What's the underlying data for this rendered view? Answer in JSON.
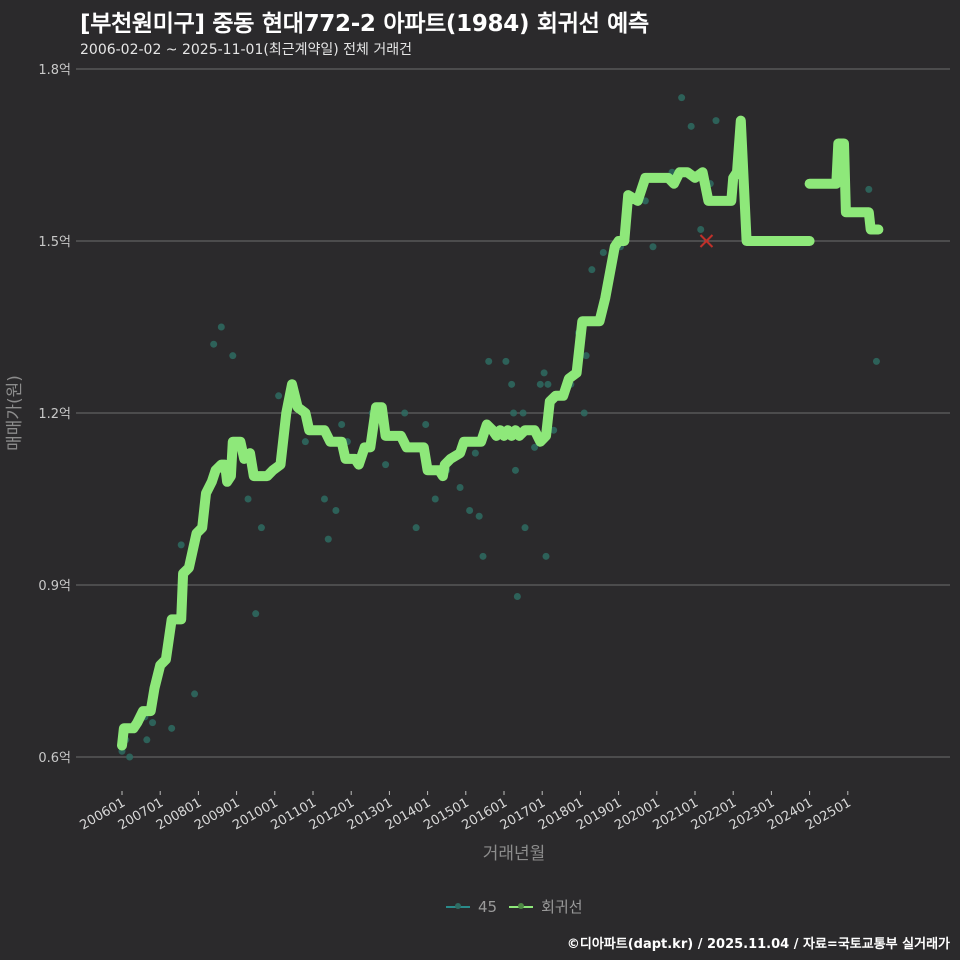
{
  "header": {
    "title": "[부천원미구] 중동 현대772-2 아파트(1984) 회귀선 예측",
    "subtitle": "2006-02-02 ~ 2025-11-01(최근계약일) 전체 거래건"
  },
  "legend": {
    "items": [
      {
        "label": "45",
        "color": "#2a8a8a"
      },
      {
        "label": "회귀선",
        "color": "#8ee87a"
      }
    ]
  },
  "footer": {
    "credit": "©디아파트(dapt.kr) / 2025.11.04 / 자료=국토교통부 실거래가"
  },
  "colors": {
    "background": "#2b2a2c",
    "regression": "#8ee87a",
    "scatter": "#2e6b62",
    "grid": "#6e6e6e",
    "marker_x": "#c0302a"
  },
  "chart_data": {
    "type": "line",
    "title": "[부천원미구] 중동 현대772-2 아파트(1984) 회귀선 예측",
    "subtitle": "2006-02-02 ~ 2025-11-01(최근계약일) 전체 거래건",
    "xlabel": "거래년월",
    "ylabel": "매매가(원)",
    "ylim": [
      0.55,
      1.82
    ],
    "yticks": [
      {
        "value": 0.6,
        "label": "0.6억"
      },
      {
        "value": 0.9,
        "label": "0.9억"
      },
      {
        "value": 1.2,
        "label": "1.2억"
      },
      {
        "value": 1.5,
        "label": "1.5억"
      },
      {
        "value": 1.8,
        "label": "1.8억"
      }
    ],
    "xticks": [
      "200601",
      "200701",
      "200801",
      "200901",
      "201001",
      "201101",
      "201201",
      "201301",
      "201401",
      "201501",
      "201601",
      "201701",
      "201801",
      "201901",
      "202001",
      "202101",
      "202201",
      "202301",
      "202401",
      "202501"
    ],
    "xrange": [
      2005.6,
      2026.0
    ],
    "grid": true,
    "legend_position": "bottom",
    "series": [
      {
        "name": "회귀선",
        "type": "line",
        "segments": [
          [
            [
              2006.0,
              0.62
            ],
            [
              2006.05,
              0.65
            ],
            [
              2006.3,
              0.65
            ],
            [
              2006.4,
              0.66
            ],
            [
              2006.55,
              0.68
            ],
            [
              2006.75,
              0.68
            ],
            [
              2006.85,
              0.72
            ],
            [
              2007.0,
              0.76
            ],
            [
              2007.15,
              0.77
            ],
            [
              2007.3,
              0.84
            ],
            [
              2007.55,
              0.84
            ],
            [
              2007.6,
              0.92
            ],
            [
              2007.75,
              0.93
            ],
            [
              2007.95,
              0.99
            ],
            [
              2008.1,
              1.0
            ],
            [
              2008.2,
              1.06
            ],
            [
              2008.35,
              1.08
            ],
            [
              2008.45,
              1.1
            ],
            [
              2008.6,
              1.11
            ],
            [
              2008.7,
              1.11
            ],
            [
              2008.75,
              1.08
            ],
            [
              2008.85,
              1.09
            ],
            [
              2008.9,
              1.15
            ],
            [
              2009.1,
              1.15
            ],
            [
              2009.2,
              1.12
            ],
            [
              2009.35,
              1.13
            ],
            [
              2009.45,
              1.09
            ],
            [
              2009.8,
              1.09
            ],
            [
              2009.95,
              1.1
            ],
            [
              2010.15,
              1.11
            ],
            [
              2010.3,
              1.2
            ],
            [
              2010.45,
              1.25
            ],
            [
              2010.6,
              1.21
            ],
            [
              2010.8,
              1.2
            ],
            [
              2010.9,
              1.17
            ],
            [
              2011.3,
              1.17
            ],
            [
              2011.45,
              1.15
            ],
            [
              2011.75,
              1.15
            ],
            [
              2011.85,
              1.12
            ],
            [
              2012.1,
              1.12
            ],
            [
              2012.2,
              1.11
            ],
            [
              2012.35,
              1.14
            ],
            [
              2012.5,
              1.14
            ],
            [
              2012.65,
              1.21
            ],
            [
              2012.8,
              1.21
            ],
            [
              2012.9,
              1.16
            ],
            [
              2013.3,
              1.16
            ],
            [
              2013.45,
              1.14
            ],
            [
              2013.9,
              1.14
            ],
            [
              2014.0,
              1.1
            ],
            [
              2014.3,
              1.1
            ],
            [
              2014.4,
              1.09
            ],
            [
              2014.45,
              1.11
            ],
            [
              2014.6,
              1.12
            ],
            [
              2014.85,
              1.13
            ],
            [
              2014.95,
              1.15
            ],
            [
              2015.4,
              1.15
            ],
            [
              2015.55,
              1.18
            ],
            [
              2015.7,
              1.17
            ],
            [
              2015.8,
              1.16
            ],
            [
              2015.9,
              1.17
            ],
            [
              2016.0,
              1.16
            ],
            [
              2016.1,
              1.17
            ],
            [
              2016.2,
              1.16
            ],
            [
              2016.3,
              1.17
            ],
            [
              2016.4,
              1.16
            ],
            [
              2016.55,
              1.17
            ],
            [
              2016.8,
              1.17
            ],
            [
              2016.95,
              1.15
            ],
            [
              2017.1,
              1.16
            ],
            [
              2017.2,
              1.22
            ],
            [
              2017.35,
              1.23
            ],
            [
              2017.55,
              1.23
            ],
            [
              2017.7,
              1.26
            ],
            [
              2017.9,
              1.27
            ],
            [
              2018.05,
              1.36
            ],
            [
              2018.5,
              1.36
            ],
            [
              2018.65,
              1.4
            ],
            [
              2018.9,
              1.49
            ],
            [
              2019.0,
              1.5
            ],
            [
              2019.15,
              1.5
            ],
            [
              2019.25,
              1.58
            ],
            [
              2019.5,
              1.57
            ],
            [
              2019.7,
              1.61
            ],
            [
              2020.3,
              1.61
            ],
            [
              2020.45,
              1.6
            ],
            [
              2020.6,
              1.62
            ],
            [
              2020.8,
              1.62
            ],
            [
              2021.0,
              1.61
            ],
            [
              2021.2,
              1.62
            ],
            [
              2021.35,
              1.57
            ],
            [
              2021.95,
              1.57
            ],
            [
              2022.0,
              1.61
            ],
            [
              2022.1,
              1.62
            ],
            [
              2022.2,
              1.71
            ],
            [
              2022.35,
              1.5
            ],
            [
              2024.0,
              1.5
            ]
          ],
          [
            [
              2024.0,
              1.6
            ],
            [
              2024.7,
              1.6
            ],
            [
              2024.75,
              1.67
            ],
            [
              2024.9,
              1.67
            ],
            [
              2024.95,
              1.55
            ],
            [
              2025.55,
              1.55
            ],
            [
              2025.6,
              1.52
            ],
            [
              2025.8,
              1.52
            ]
          ]
        ]
      },
      {
        "name": "45",
        "type": "scatter",
        "points": [
          [
            2006.0,
            0.61
          ],
          [
            2006.2,
            0.6
          ],
          [
            2006.1,
            0.63
          ],
          [
            2006.4,
            0.66
          ],
          [
            2006.65,
            0.63
          ],
          [
            2006.8,
            0.66
          ],
          [
            2006.6,
            0.67
          ],
          [
            2007.3,
            0.65
          ],
          [
            2007.55,
            0.97
          ],
          [
            2007.9,
            0.71
          ],
          [
            2008.4,
            1.32
          ],
          [
            2008.6,
            1.35
          ],
          [
            2008.9,
            1.3
          ],
          [
            2009.3,
            1.05
          ],
          [
            2009.5,
            0.85
          ],
          [
            2009.65,
            1.0
          ],
          [
            2010.1,
            1.23
          ],
          [
            2010.8,
            1.15
          ],
          [
            2011.3,
            1.05
          ],
          [
            2011.4,
            0.98
          ],
          [
            2011.6,
            1.03
          ],
          [
            2011.75,
            1.18
          ],
          [
            2011.9,
            1.15
          ],
          [
            2012.25,
            1.12
          ],
          [
            2012.55,
            1.2
          ],
          [
            2012.9,
            1.11
          ],
          [
            2013.4,
            1.2
          ],
          [
            2013.7,
            1.0
          ],
          [
            2013.95,
            1.18
          ],
          [
            2014.2,
            1.05
          ],
          [
            2014.5,
            1.1
          ],
          [
            2014.85,
            1.07
          ],
          [
            2015.1,
            1.03
          ],
          [
            2015.25,
            1.13
          ],
          [
            2015.45,
            0.95
          ],
          [
            2015.35,
            1.02
          ],
          [
            2015.6,
            1.29
          ],
          [
            2015.8,
            1.17
          ],
          [
            2016.05,
            1.29
          ],
          [
            2016.2,
            1.25
          ],
          [
            2016.25,
            1.2
          ],
          [
            2016.3,
            1.1
          ],
          [
            2016.5,
            1.2
          ],
          [
            2016.55,
            1.0
          ],
          [
            2016.35,
            0.88
          ],
          [
            2016.65,
            1.17
          ],
          [
            2016.95,
            1.25
          ],
          [
            2017.05,
            1.27
          ],
          [
            2017.15,
            1.25
          ],
          [
            2017.3,
            1.17
          ],
          [
            2017.1,
            0.95
          ],
          [
            2017.75,
            1.25
          ],
          [
            2017.95,
            1.34
          ],
          [
            2018.1,
            1.2
          ],
          [
            2018.15,
            1.3
          ],
          [
            2018.3,
            1.45
          ],
          [
            2018.6,
            1.48
          ],
          [
            2019.05,
            1.49
          ],
          [
            2019.7,
            1.57
          ],
          [
            2019.9,
            1.49
          ],
          [
            2020.4,
            1.62
          ],
          [
            2020.65,
            1.75
          ],
          [
            2020.9,
            1.7
          ],
          [
            2021.15,
            1.52
          ],
          [
            2021.4,
            1.6
          ],
          [
            2021.55,
            1.71
          ],
          [
            2025.55,
            1.59
          ],
          [
            2025.75,
            1.29
          ],
          [
            2016.8,
            1.14
          ],
          [
            2016.0,
            1.16
          ]
        ]
      }
    ],
    "annotations": [
      {
        "type": "x-marker",
        "x": 2021.3,
        "y": 1.5,
        "color": "#c0302a"
      }
    ]
  }
}
